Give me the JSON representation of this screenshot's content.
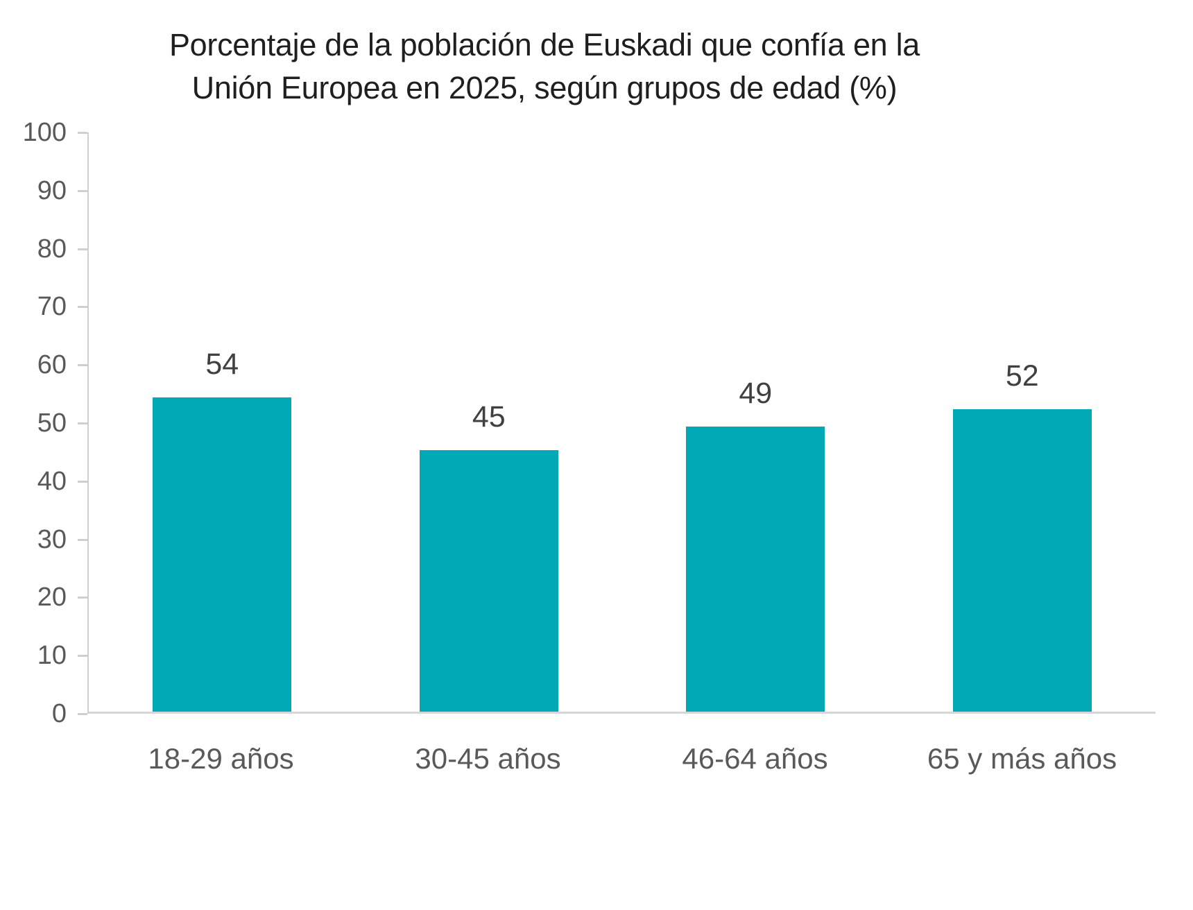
{
  "chart_data": {
    "type": "bar",
    "title": "Porcentaje de la población de Euskadi que confía en la Unión Europea en 2025, según grupos de edad (%)",
    "title_lines": [
      "Porcentaje de la población de Euskadi que confía en la",
      "Unión Europea en 2025, según grupos de edad (%)"
    ],
    "categories": [
      "18-29 años",
      "30-45 años",
      "46-64 años",
      "65 y más años"
    ],
    "values": [
      54,
      45,
      49,
      52
    ],
    "data_labels": [
      "54",
      "45",
      "49",
      "52"
    ],
    "xlabel": "",
    "ylabel": "",
    "ylim": [
      0,
      100
    ],
    "yticks": [
      0,
      10,
      20,
      30,
      40,
      50,
      60,
      70,
      80,
      90,
      100
    ],
    "grid": false,
    "legend": "none",
    "colors": {
      "bar": "#00a9b5",
      "title_text": "#1f1f1f",
      "data_label_text": "#404040",
      "tick_label_text": "#595959",
      "axis_line": "#cfcfcf"
    }
  }
}
